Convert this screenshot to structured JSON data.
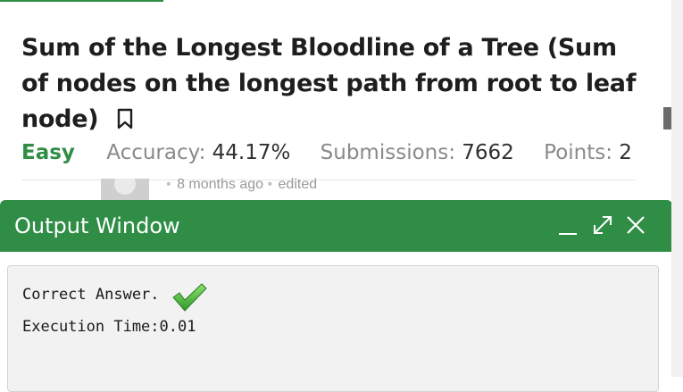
{
  "problem": {
    "title": "Sum of the Longest Bloodline of a Tree (Sum of nodes on the longest path from root to leaf node)",
    "difficulty": "Easy",
    "accuracy_label": "Accuracy:",
    "accuracy_value": "44.17%",
    "submissions_label": "Submissions:",
    "submissions_value": "7662",
    "points_label": "Points:",
    "points_value": "2"
  },
  "comment": {
    "time": "8 months ago",
    "edited": "edited"
  },
  "output_window": {
    "title": "Output Window",
    "result_label": "Correct Answer.",
    "execution_time": "Execution Time:0.01"
  },
  "icons": {
    "bookmark": "bookmark-icon",
    "minimize": "minimize-icon",
    "expand": "expand-icon",
    "close": "close-icon",
    "check": "checkmark-icon"
  },
  "colors": {
    "brand_green": "#2f8d46",
    "check_green": "#4cbf3a"
  }
}
